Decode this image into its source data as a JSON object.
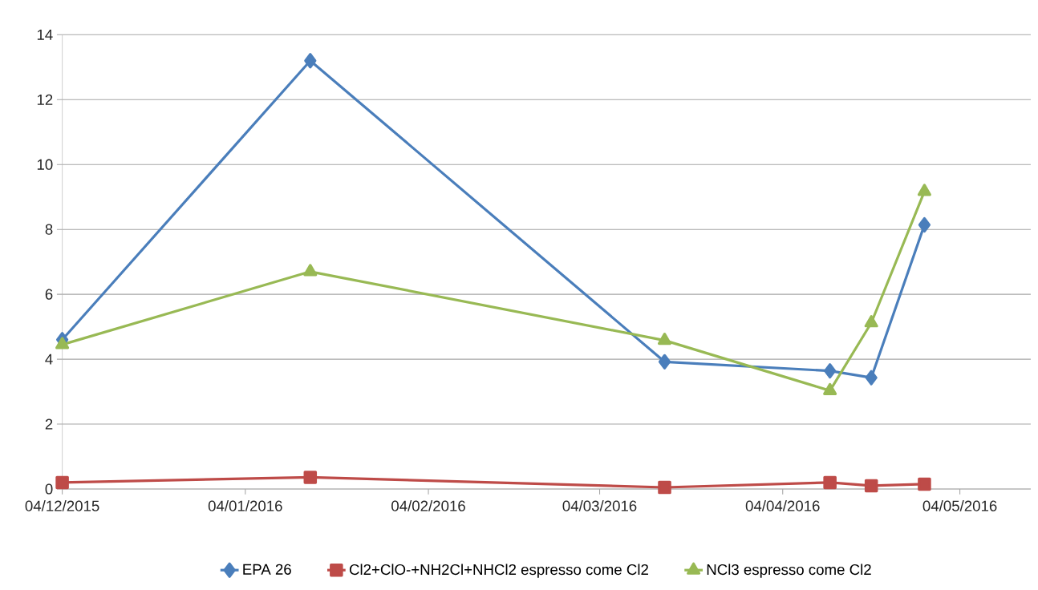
{
  "chart_data": {
    "type": "line",
    "x": [
      "2015-12-04",
      "2016-01-15",
      "2016-03-15",
      "2016-04-12",
      "2016-04-19",
      "2016-04-28"
    ],
    "series": [
      {
        "name": "EPA 26",
        "color": "#4a7ebb",
        "marker": "diamond",
        "values": [
          4.6,
          13.2,
          3.92,
          3.64,
          3.43,
          8.14
        ]
      },
      {
        "name": "Cl2+ClO-+NH2Cl+NHCl2 espresso come Cl2",
        "color": "#be4b48",
        "marker": "square",
        "values": [
          0.2,
          0.36,
          0.05,
          0.2,
          0.1,
          0.15
        ]
      },
      {
        "name": "NCl3 espresso come Cl2",
        "color": "#98b954",
        "marker": "triangle",
        "values": [
          4.45,
          6.7,
          4.58,
          3.03,
          5.12,
          9.17
        ]
      }
    ],
    "xlim": [
      "2015-12-04",
      "2016-05-16"
    ],
    "xticks": [
      {
        "value": "2015-12-04",
        "label": "04/12/2015"
      },
      {
        "value": "2016-01-04",
        "label": "04/01/2016"
      },
      {
        "value": "2016-02-04",
        "label": "04/02/2016"
      },
      {
        "value": "2016-03-04",
        "label": "04/03/2016"
      },
      {
        "value": "2016-04-04",
        "label": "04/04/2016"
      },
      {
        "value": "2016-05-04",
        "label": "04/05/2016"
      }
    ],
    "ylim": [
      0,
      14
    ],
    "yticks": [
      0,
      2,
      4,
      6,
      8,
      10,
      12,
      14
    ],
    "grid": "y",
    "legend": "bottom",
    "line_style": "solid"
  }
}
